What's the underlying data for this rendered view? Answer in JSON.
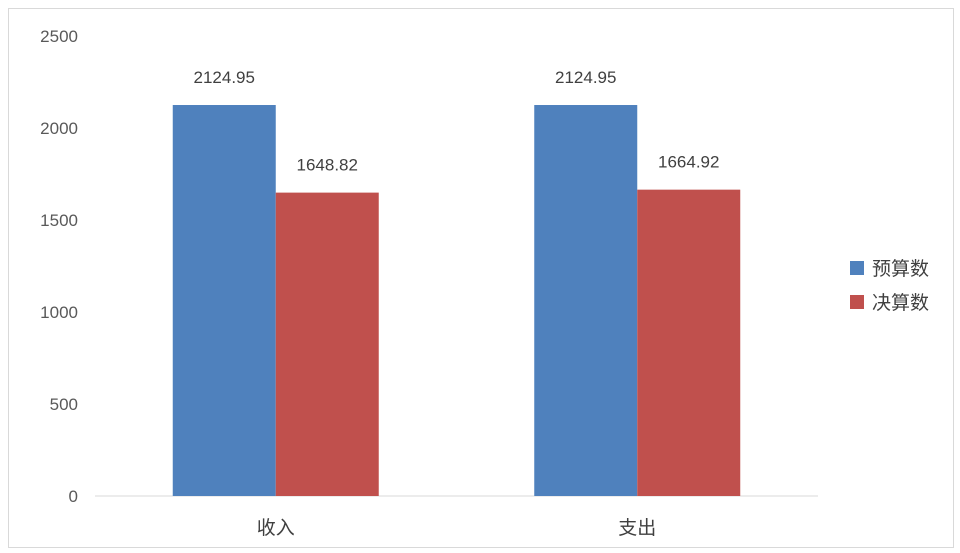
{
  "chart_data": {
    "type": "bar",
    "categories": [
      "收入",
      "支出"
    ],
    "series": [
      {
        "name": "预算数",
        "values": [
          2124.95,
          2124.95
        ],
        "color": "#4F81BD"
      },
      {
        "name": "决算数",
        "values": [
          1648.82,
          1664.92
        ],
        "color": "#C0504D"
      }
    ],
    "yticks": [
      "0",
      "500",
      "1000",
      "1500",
      "2000",
      "2500"
    ],
    "data_labels": [
      [
        "2124.95",
        "2124.95"
      ],
      [
        "1648.82",
        "1664.92"
      ]
    ],
    "ylim": [
      0,
      2500
    ],
    "grid": false,
    "legend_position": "right"
  }
}
